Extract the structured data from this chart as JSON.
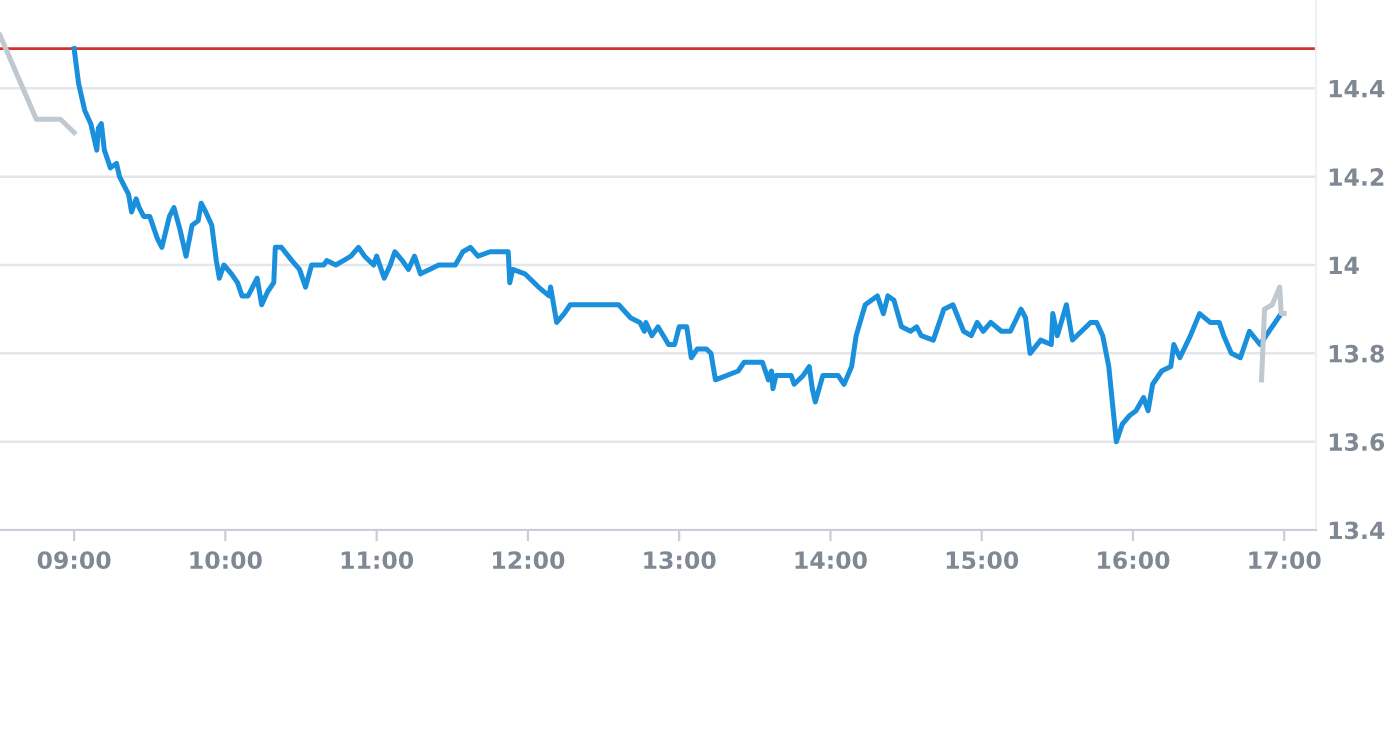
{
  "chart_data": {
    "type": "line",
    "xlim": [
      8.51,
      17.21
    ],
    "ylim": [
      13.4,
      14.6
    ],
    "xticks": [
      {
        "value": 9,
        "label": "09:00"
      },
      {
        "value": 10,
        "label": "10:00"
      },
      {
        "value": 11,
        "label": "11:00"
      },
      {
        "value": 12,
        "label": "12:00"
      },
      {
        "value": 13,
        "label": "13:00"
      },
      {
        "value": 14,
        "label": "14:00"
      },
      {
        "value": 15,
        "label": "15:00"
      },
      {
        "value": 16,
        "label": "16:00"
      },
      {
        "value": 17,
        "label": "17:00"
      }
    ],
    "yticks": [
      13.4,
      13.6,
      13.8,
      {
        "value": 14,
        "label": "14"
      },
      14.2,
      14.4
    ],
    "grid": "y",
    "legend": false,
    "marker": "none",
    "line_style": "solid",
    "ref_lines": [
      {
        "axis": "y",
        "value": 14.49,
        "color": "#d0342c"
      }
    ],
    "series": [
      {
        "color": "#c0c8d0",
        "x": [
          8.51,
          8.75,
          8.91,
          9.0
        ],
        "values": [
          14.52,
          14.33,
          14.33,
          14.3
        ]
      },
      {
        "color": "#1a90dc",
        "x": [
          9.0,
          9.03,
          9.07,
          9.11,
          9.15,
          9.16,
          9.18,
          9.2,
          9.24,
          9.28,
          9.3,
          9.33,
          9.36,
          9.38,
          9.41,
          9.43,
          9.46,
          9.5,
          9.53,
          9.55,
          9.58,
          9.63,
          9.66,
          9.7,
          9.74,
          9.78,
          9.82,
          9.84,
          9.87,
          9.91,
          9.94,
          9.96,
          9.99,
          10.04,
          10.08,
          10.11,
          10.15,
          10.21,
          10.24,
          10.28,
          10.32,
          10.33,
          10.37,
          10.44,
          10.49,
          10.53,
          10.57,
          10.65,
          10.67,
          10.73,
          10.78,
          10.83,
          10.88,
          10.92,
          10.98,
          11.0,
          11.05,
          11.09,
          11.12,
          11.17,
          11.21,
          11.25,
          11.29,
          11.35,
          11.41,
          11.52,
          11.57,
          11.62,
          11.67,
          11.75,
          11.87,
          11.88,
          11.9,
          11.98,
          12.07,
          12.14,
          12.15,
          12.19,
          12.24,
          12.28,
          12.6,
          12.68,
          12.74,
          12.77,
          12.78,
          12.82,
          12.86,
          12.93,
          12.97,
          13.0,
          13.05,
          13.08,
          13.12,
          13.18,
          13.21,
          13.24,
          13.39,
          13.43,
          13.55,
          13.59,
          13.61,
          13.62,
          13.64,
          13.74,
          13.76,
          13.82,
          13.86,
          13.88,
          13.9,
          13.95,
          14.05,
          14.09,
          14.14,
          14.17,
          14.23,
          14.31,
          14.35,
          14.38,
          14.42,
          14.47,
          14.53,
          14.57,
          14.6,
          14.68,
          14.75,
          14.81,
          14.88,
          14.93,
          14.97,
          15.01,
          15.06,
          15.13,
          15.19,
          15.26,
          15.29,
          15.32,
          15.39,
          15.46,
          15.47,
          15.5,
          15.56,
          15.6,
          15.72,
          15.76,
          15.8,
          15.84,
          15.89,
          15.93,
          15.98,
          16.02,
          16.07,
          16.1,
          16.13,
          16.19,
          16.25,
          16.27,
          16.31,
          16.38,
          16.44,
          16.51,
          16.57,
          16.6,
          16.65,
          16.71,
          16.77,
          16.84,
          16.98
        ],
        "values": [
          14.49,
          14.41,
          14.35,
          14.32,
          14.26,
          14.31,
          14.32,
          14.26,
          14.22,
          14.23,
          14.2,
          14.18,
          14.16,
          14.12,
          14.15,
          14.13,
          14.11,
          14.11,
          14.08,
          14.06,
          14.04,
          14.11,
          14.13,
          14.08,
          14.02,
          14.09,
          14.1,
          14.14,
          14.12,
          14.09,
          14.01,
          13.97,
          14.0,
          13.98,
          13.96,
          13.93,
          13.93,
          13.97,
          13.91,
          13.94,
          13.96,
          14.04,
          14.04,
          14.01,
          13.99,
          13.95,
          14.0,
          14.0,
          14.01,
          14.0,
          14.01,
          14.02,
          14.04,
          14.02,
          14.0,
          14.02,
          13.97,
          14.0,
          14.03,
          14.01,
          13.99,
          14.02,
          13.98,
          13.99,
          14.0,
          14.0,
          14.03,
          14.04,
          14.02,
          14.03,
          14.03,
          13.96,
          13.99,
          13.98,
          13.95,
          13.93,
          13.95,
          13.87,
          13.89,
          13.91,
          13.91,
          13.88,
          13.87,
          13.85,
          13.87,
          13.84,
          13.86,
          13.82,
          13.82,
          13.86,
          13.86,
          13.79,
          13.81,
          13.81,
          13.8,
          13.74,
          13.76,
          13.78,
          13.78,
          13.74,
          13.76,
          13.72,
          13.75,
          13.75,
          13.73,
          13.75,
          13.77,
          13.72,
          13.69,
          13.75,
          13.75,
          13.73,
          13.77,
          13.84,
          13.91,
          13.93,
          13.89,
          13.93,
          13.92,
          13.86,
          13.85,
          13.86,
          13.84,
          13.83,
          13.9,
          13.91,
          13.85,
          13.84,
          13.87,
          13.85,
          13.87,
          13.85,
          13.85,
          13.9,
          13.88,
          13.8,
          13.83,
          13.82,
          13.89,
          13.84,
          13.91,
          13.83,
          13.87,
          13.87,
          13.84,
          13.77,
          13.6,
          13.64,
          13.66,
          13.67,
          13.7,
          13.67,
          13.73,
          13.76,
          13.77,
          13.82,
          13.79,
          13.84,
          13.89,
          13.87,
          13.87,
          13.84,
          13.8,
          13.79,
          13.85,
          13.82,
          13.89
        ]
      },
      {
        "color": "#c0c8d0",
        "x": [
          16.85,
          16.87,
          16.92,
          16.97,
          16.98,
          17.0
        ],
        "values": [
          13.74,
          13.9,
          13.91,
          13.95,
          13.89,
          13.89
        ]
      }
    ]
  }
}
